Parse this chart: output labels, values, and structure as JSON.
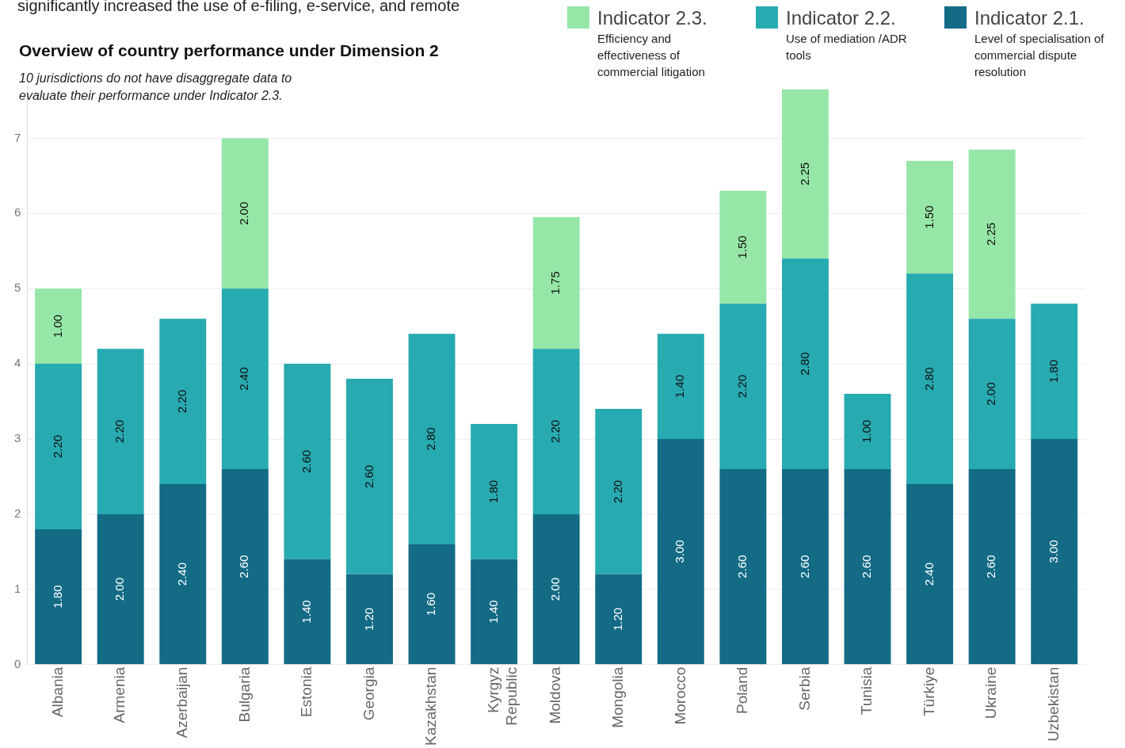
{
  "chart_data": {
    "type": "bar",
    "stacked": true,
    "title": "Overview of country performance under Dimension 2",
    "subtitle": "10 jurisdictions do not have disaggregate data to evaluate their performance under Indicator 2.3.",
    "annotations": [
      "significantly increased the use of e-filing, e-service, and remote"
    ],
    "categories": [
      "Albania",
      "Armenia",
      "Azerbaijan",
      "Bulgaria",
      "Estonia",
      "Georgia",
      "Kazakhstan",
      "Kyrgyz Republic",
      "Moldova",
      "Mongolia",
      "Morocco",
      "Poland",
      "Serbia",
      "Tunisia",
      "Türkiye",
      "Ukraine",
      "Uzbekistan"
    ],
    "series": [
      {
        "name": "Indicator 2.1.\nLevel of specialisation of commercial dispute resolution",
        "color": "#136b86",
        "values": [
          1.8,
          2.0,
          2.4,
          2.6,
          1.4,
          1.2,
          1.6,
          1.4,
          2.0,
          1.2,
          3.0,
          2.6,
          2.6,
          2.6,
          2.4,
          2.6,
          3.0
        ],
        "value_labels": [
          "1.80",
          "2.00",
          "2.40",
          "2.60",
          "1.40",
          "1.20",
          "1.60",
          "1.40",
          "2.00",
          "1.20",
          "3.00",
          "2.60",
          "2.60",
          "2.60",
          "2.40",
          "2.60",
          "3.00"
        ]
      },
      {
        "name": "Indicator 2.2.\nUse of mediation /ADR tools",
        "color": "#27aab0",
        "values": [
          2.2,
          2.2,
          2.2,
          2.4,
          2.6,
          2.6,
          2.8,
          1.8,
          2.2,
          2.2,
          1.4,
          2.2,
          2.8,
          1.0,
          2.8,
          2.0,
          1.8
        ],
        "value_labels": [
          "2.20",
          "2.20",
          "2.20",
          "2.40",
          "2.60",
          "2.60",
          "2.80",
          "1.80",
          "2.20",
          "2.20",
          "1.40",
          "2.20",
          "2.80",
          "1.00",
          "2.80",
          "2.00",
          "1.80"
        ]
      },
      {
        "name": "Indicator 2.3.\nEfficiency and effectiveness of commercial litigation",
        "color": "#95e6a7",
        "values": [
          1.0,
          null,
          null,
          2.0,
          null,
          null,
          null,
          null,
          1.75,
          null,
          null,
          1.5,
          2.25,
          null,
          1.5,
          2.25,
          null
        ],
        "value_labels": [
          "1.00",
          null,
          null,
          "2.00",
          null,
          null,
          null,
          null,
          "1.75",
          null,
          null,
          "1.50",
          "2.25",
          null,
          "1.50",
          "2.25",
          null
        ]
      }
    ],
    "ylim": [
      0,
      7.7
    ],
    "yticks": [
      0,
      1,
      2,
      3,
      4,
      5,
      6,
      7
    ],
    "grid": "y",
    "legend": "top right"
  }
}
